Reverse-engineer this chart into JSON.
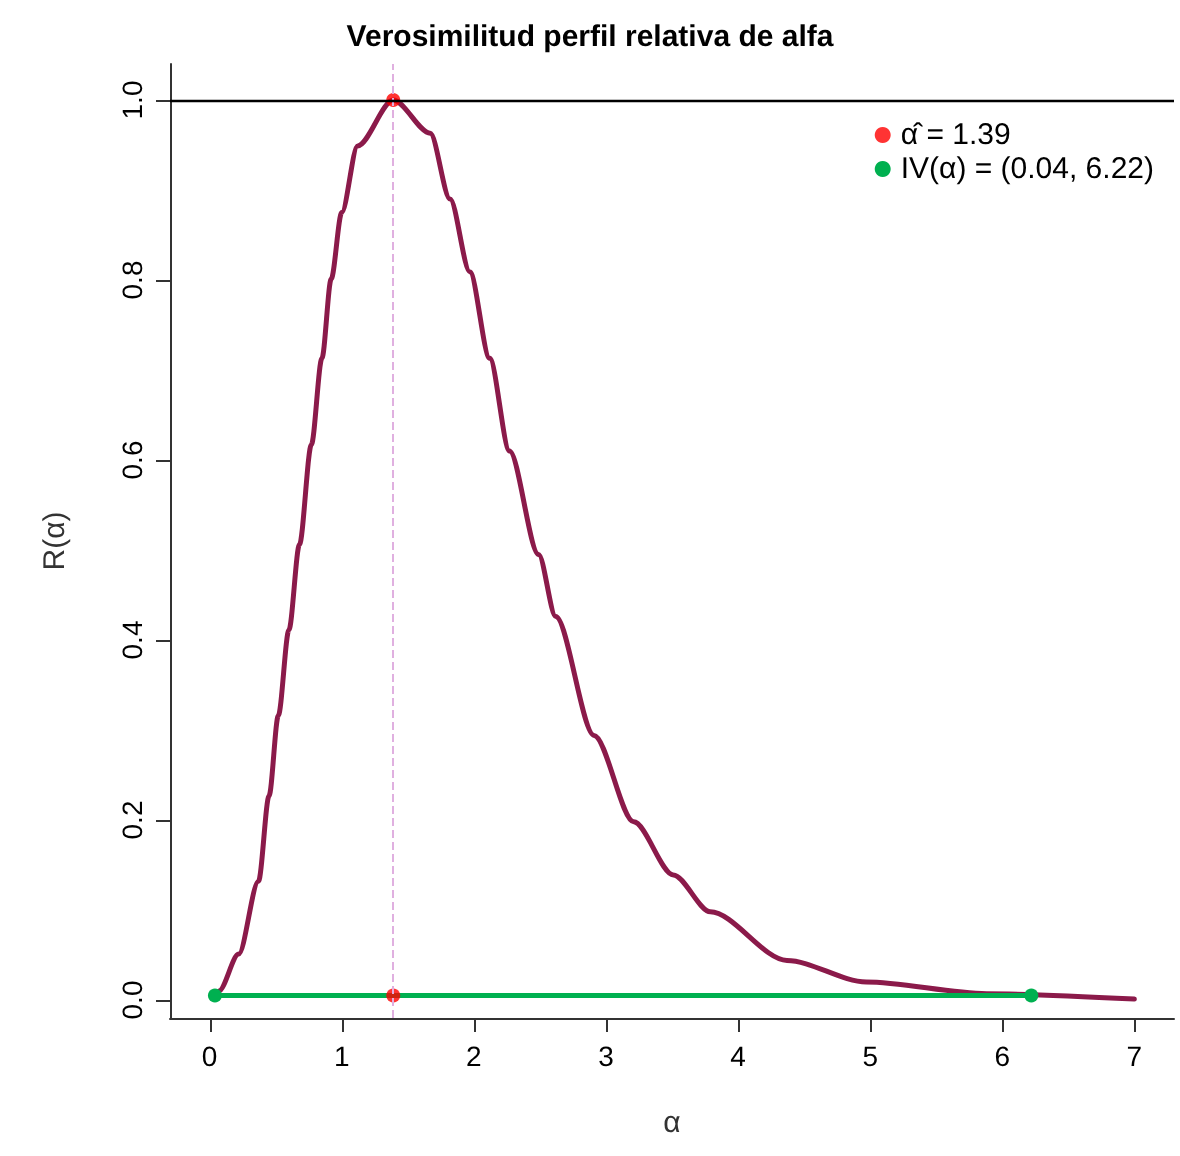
{
  "chart_data": {
    "type": "line",
    "title": "Verosimilitud perfil relativa de alfa",
    "xlabel": "α",
    "ylabel": "R(α)",
    "xlim": [
      -0.3,
      7.3
    ],
    "xticks": [
      0,
      1,
      2,
      3,
      4,
      5,
      6,
      7
    ],
    "ylim": [
      -0.02,
      1.04
    ],
    "yticks": [
      {
        "value": 0,
        "label": "0.0"
      },
      {
        "value": 0.2,
        "label": "0.2"
      },
      {
        "value": 0.4,
        "label": "0.4"
      },
      {
        "value": 0.6,
        "label": "0.6"
      },
      {
        "value": 0.8,
        "label": "0.8"
      },
      {
        "value": 1,
        "label": "1.0"
      }
    ],
    "grid": false,
    "legend": "top right",
    "marker": "none",
    "series": [
      {
        "color": "#8b1a4a",
        "x": [
          0.05,
          0.07,
          0.22,
          0.37,
          0.45,
          0.52,
          0.6,
          0.68,
          0.77,
          0.85,
          0.92,
          1.0,
          1.12,
          1.39,
          1.67,
          1.82,
          1.97,
          2.12,
          2.27,
          2.49,
          2.62,
          2.91,
          3.21,
          3.51,
          3.79,
          4.37,
          4.97,
          5.88,
          7.0
        ],
        "values": [
          0.005,
          0.01,
          0.051,
          0.132,
          0.227,
          0.316,
          0.411,
          0.506,
          0.617,
          0.713,
          0.801,
          0.875,
          0.949,
          1.0,
          0.963,
          0.89,
          0.809,
          0.713,
          0.61,
          0.495,
          0.426,
          0.294,
          0.198,
          0.139,
          0.098,
          0.044,
          0.02,
          0.007,
          0.001
        ]
      },
      {
        "name": "α̂ = 1.39",
        "type": "scatter",
        "marker": "circle",
        "color": "#ff0000",
        "x": [
          1.39,
          1.39
        ],
        "values": [
          1.0,
          0.005
        ]
      },
      {
        "name": "IV(α) = (0.04, 6.22)",
        "marker": "circle",
        "color": "#00b050",
        "x": [
          0.04,
          6.22
        ],
        "values": [
          0.005,
          0.005
        ]
      }
    ],
    "ref_lines": [
      {
        "axis": "x",
        "value": 1.39,
        "color": "#e0b0e0",
        "line_style": "dashed"
      },
      {
        "axis": "y",
        "value": 1,
        "color": "#000000",
        "line_style": "solid"
      }
    ]
  }
}
